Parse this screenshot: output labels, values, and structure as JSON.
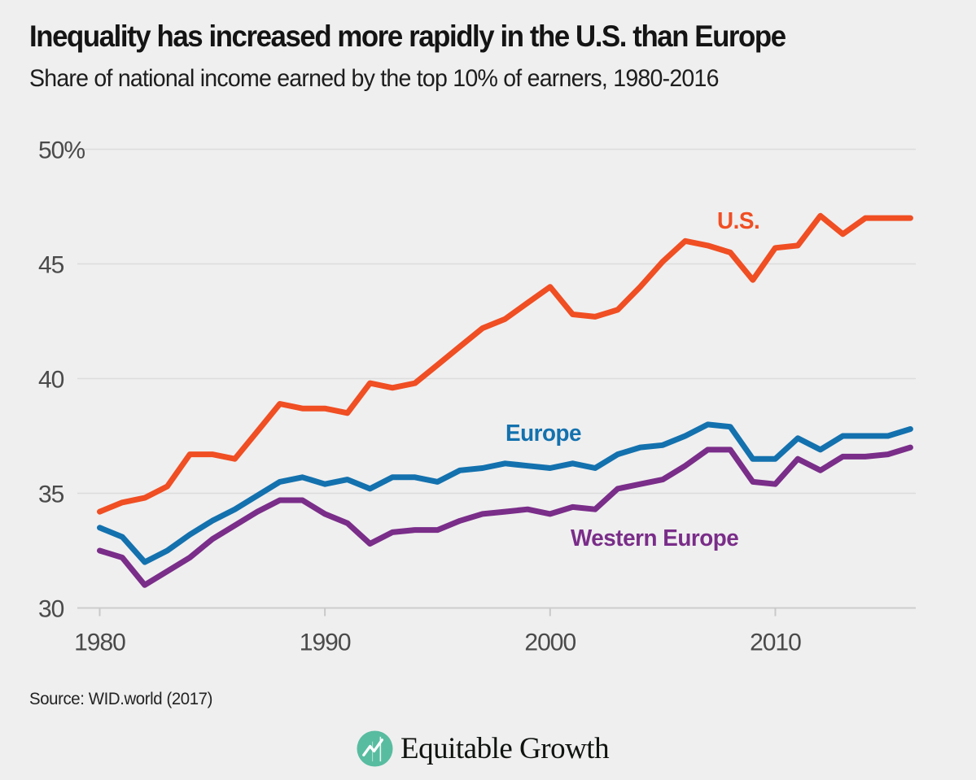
{
  "header": {
    "title": "Inequality has increased more rapidly in the U.S. than Europe",
    "subtitle": "Share of national income earned by the top 10% of earners, 1980-2016"
  },
  "chart_data": {
    "type": "line",
    "x": [
      1980,
      1981,
      1982,
      1983,
      1984,
      1985,
      1986,
      1987,
      1988,
      1989,
      1990,
      1991,
      1992,
      1993,
      1994,
      1995,
      1996,
      1997,
      1998,
      1999,
      2000,
      2001,
      2002,
      2003,
      2004,
      2005,
      2006,
      2007,
      2008,
      2009,
      2010,
      2011,
      2012,
      2013,
      2014,
      2015,
      2016
    ],
    "series": [
      {
        "name": "U.S.",
        "color": "#F04E23",
        "values": [
          34.2,
          34.6,
          34.8,
          35.3,
          36.7,
          36.7,
          36.5,
          37.7,
          38.9,
          38.7,
          38.7,
          38.5,
          39.8,
          39.6,
          39.8,
          40.6,
          41.4,
          42.2,
          42.6,
          43.3,
          44.0,
          42.8,
          42.7,
          43.0,
          44.0,
          45.1,
          46.0,
          45.8,
          45.5,
          44.3,
          45.7,
          45.8,
          47.1,
          46.3,
          47.0,
          47.0,
          47.0
        ]
      },
      {
        "name": "Europe",
        "color": "#1371AE",
        "values": [
          33.5,
          33.1,
          32.0,
          32.5,
          33.2,
          33.8,
          34.3,
          34.9,
          35.5,
          35.7,
          35.4,
          35.6,
          35.2,
          35.7,
          35.7,
          35.5,
          36.0,
          36.1,
          36.3,
          36.2,
          36.1,
          36.3,
          36.1,
          36.7,
          37.0,
          37.1,
          37.5,
          38.0,
          37.9,
          36.5,
          36.5,
          37.4,
          36.9,
          37.5,
          37.5,
          37.5,
          37.8
        ]
      },
      {
        "name": "Western Europe",
        "color": "#7A2D89",
        "values": [
          32.5,
          32.2,
          31.0,
          31.6,
          32.2,
          33.0,
          33.6,
          34.2,
          34.7,
          34.7,
          34.1,
          33.7,
          32.8,
          33.3,
          33.4,
          33.4,
          33.8,
          34.1,
          34.2,
          34.3,
          34.1,
          34.4,
          34.3,
          35.2,
          35.4,
          35.6,
          36.2,
          36.9,
          36.9,
          35.5,
          35.4,
          36.5,
          36.0,
          36.6,
          36.6,
          36.7,
          37.0
        ]
      }
    ],
    "ylim": [
      30,
      50
    ],
    "xlim": [
      1980,
      2016
    ],
    "y_ticks": [
      {
        "value": 50,
        "label": "50%"
      },
      {
        "value": 45,
        "label": "45"
      },
      {
        "value": 40,
        "label": "40"
      },
      {
        "value": 35,
        "label": "35"
      },
      {
        "value": 30,
        "label": "30"
      }
    ],
    "x_ticks": [
      {
        "value": 1980,
        "label": "1980"
      },
      {
        "value": 1990,
        "label": "1990"
      },
      {
        "value": 2000,
        "label": "2000"
      },
      {
        "value": 2010,
        "label": "2010"
      }
    ],
    "grid": "horizontal",
    "legend_position": "inline-labels"
  },
  "footer": {
    "source": "Source: WID.world (2017)",
    "logo_text": "Equitable Growth"
  },
  "colors": {
    "background": "#EFEFEF",
    "gridline": "#DCDCDC",
    "axis_line": "#CDCDCD",
    "tick_mark": "#C9C9C9",
    "tick_label": "#4A4A4A",
    "title_text": "#141414",
    "logo_teal": "#58BCA0"
  }
}
